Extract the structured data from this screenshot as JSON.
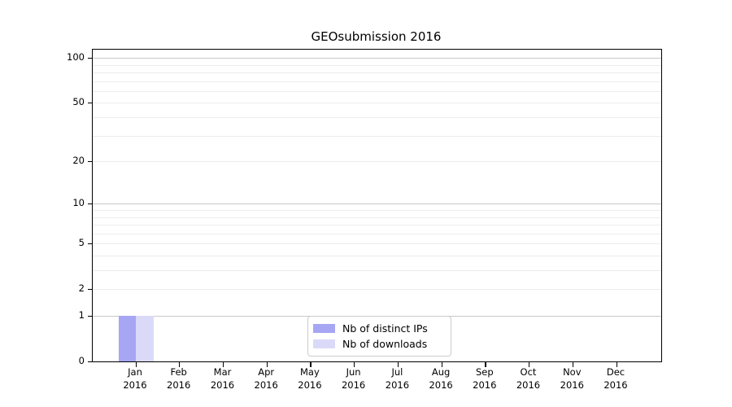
{
  "figure": {
    "background": "#ffffff"
  },
  "chart_data": {
    "type": "bar",
    "title": "GEOsubmission 2016",
    "xlabel": "",
    "ylabel": "",
    "categories": [
      {
        "month": "Jan",
        "year": "2016"
      },
      {
        "month": "Feb",
        "year": "2016"
      },
      {
        "month": "Mar",
        "year": "2016"
      },
      {
        "month": "Apr",
        "year": "2016"
      },
      {
        "month": "May",
        "year": "2016"
      },
      {
        "month": "Jun",
        "year": "2016"
      },
      {
        "month": "Jul",
        "year": "2016"
      },
      {
        "month": "Aug",
        "year": "2016"
      },
      {
        "month": "Sep",
        "year": "2016"
      },
      {
        "month": "Oct",
        "year": "2016"
      },
      {
        "month": "Nov",
        "year": "2016"
      },
      {
        "month": "Dec",
        "year": "2016"
      }
    ],
    "series": [
      {
        "name": "Nb of distinct IPs",
        "color": "#a6a6f4",
        "values": [
          1,
          0,
          0,
          0,
          0,
          0,
          0,
          0,
          0,
          0,
          0,
          0
        ]
      },
      {
        "name": "Nb of downloads",
        "color": "#dadaf8",
        "values": [
          1,
          0,
          0,
          0,
          0,
          0,
          0,
          0,
          0,
          0,
          0,
          0
        ]
      }
    ],
    "yticks": [
      0,
      1,
      2,
      5,
      10,
      20,
      50,
      100
    ],
    "ylim": [
      0,
      113
    ],
    "y_scale": "log10(1+y)",
    "grid": {
      "on": true,
      "minor_values": [
        2,
        3,
        4,
        5,
        6,
        7,
        8,
        9,
        20,
        30,
        40,
        50,
        60,
        70,
        80,
        90
      ],
      "major_values": [
        1,
        10,
        100
      ],
      "minor_color": "#ececec",
      "major_color": "#c9c9c9"
    },
    "legend": {
      "position": "lower center"
    },
    "colors": {
      "axis": "#000000",
      "text": "#000000",
      "legend_border": "#cccccc"
    }
  }
}
